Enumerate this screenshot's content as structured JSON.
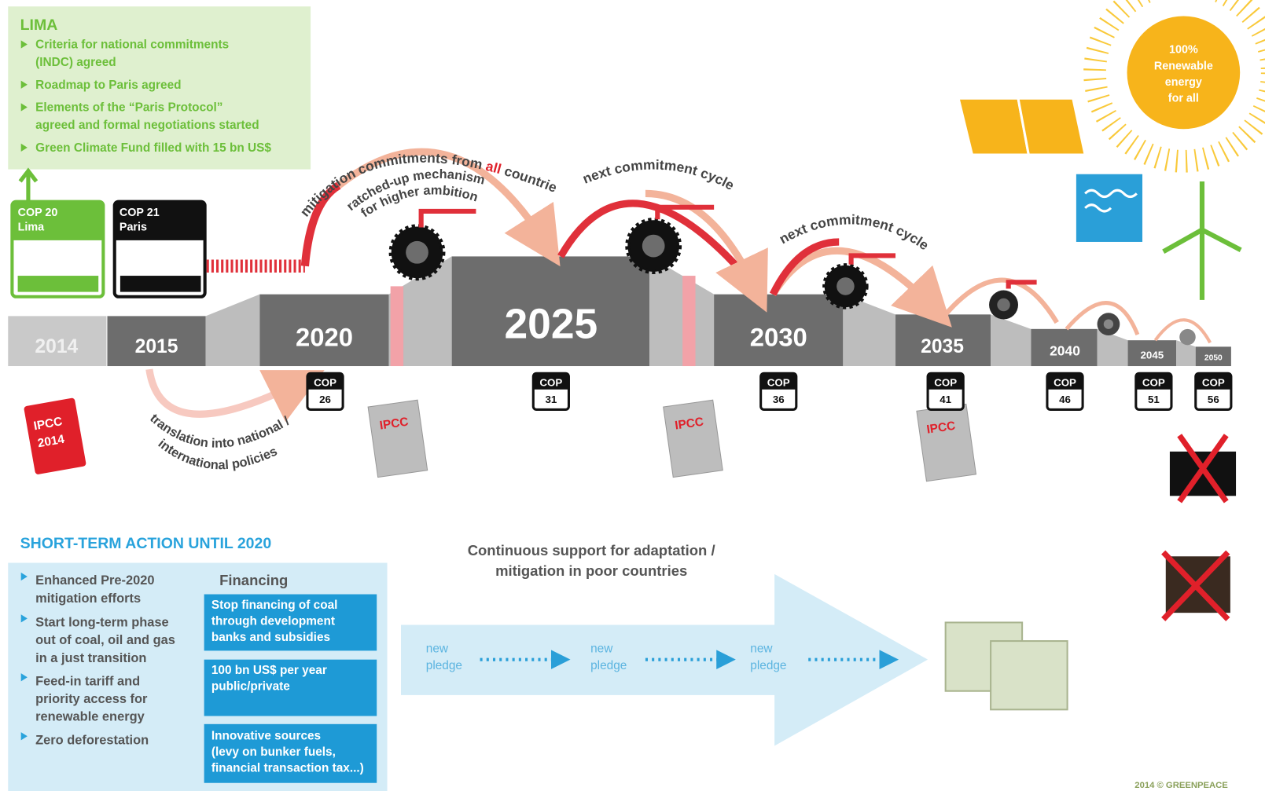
{
  "lima": {
    "title": "LIMA",
    "items": [
      [
        "Criteria for national commitments",
        "(INDC) agreed"
      ],
      [
        "Roadmap to Paris agreed"
      ],
      [
        "Elements of the “Paris Protocol”",
        "agreed and formal negotiations started"
      ],
      [
        "Green Climate Fund filled with 15 bn US$"
      ]
    ]
  },
  "cop20": {
    "label": "COP 20",
    "place": "Lima"
  },
  "cop21": {
    "label": "COP 21",
    "place": "Paris"
  },
  "years": [
    "2014",
    "2015",
    "2020",
    "2025",
    "2030",
    "2035",
    "2040",
    "2045",
    "2050"
  ],
  "arcs": {
    "mitigation": [
      "mitigation commitments from ",
      "all",
      " countries"
    ],
    "ratchet": [
      "ratched-up mechanism",
      "for higher ambition"
    ],
    "cycle1": "next commitment cycle",
    "cycle2": "next commitment cycle",
    "translation": [
      "translation into national /",
      "international policies"
    ]
  },
  "cops": [
    {
      "label": "COP",
      "number": "26"
    },
    {
      "label": "COP",
      "number": "31"
    },
    {
      "label": "COP",
      "number": "36"
    },
    {
      "label": "COP",
      "number": "41"
    },
    {
      "label": "COP",
      "number": "46"
    },
    {
      "label": "COP",
      "number": "51"
    },
    {
      "label": "COP",
      "number": "56"
    }
  ],
  "ipcc_book": [
    "IPCC",
    "2014"
  ],
  "ipcc_reports": [
    "IPCC",
    "IPCC",
    "IPCC"
  ],
  "sun": [
    "100%",
    "Renewable",
    "energy",
    "for all"
  ],
  "short_term": {
    "title": "SHORT-TERM ACTION UNTIL 2020",
    "items": [
      [
        "Enhanced Pre-2020",
        "mitigation efforts"
      ],
      [
        "Start long-term phase",
        "out of coal, oil and gas",
        "in a just transition"
      ],
      [
        "Feed-in tariff and",
        "priority access for",
        "renewable energy"
      ],
      [
        "Zero deforestation"
      ]
    ]
  },
  "financing": {
    "title": "Financing",
    "boxes": [
      [
        "Stop financing of coal",
        "through development",
        "banks and subsidies"
      ],
      [
        "100 bn US$ per year",
        "public/private"
      ],
      [
        "Innovative sources",
        "(levy on bunker fuels,",
        "financial transaction tax...)"
      ]
    ]
  },
  "support": [
    "Continuous support for adaptation /",
    "mitigation in poor countries"
  ],
  "pledges": [
    [
      "new",
      "pledge"
    ],
    [
      "new",
      "pledge"
    ],
    [
      "new",
      "pledge"
    ]
  ],
  "footer": "2014 © GREENPEACE"
}
